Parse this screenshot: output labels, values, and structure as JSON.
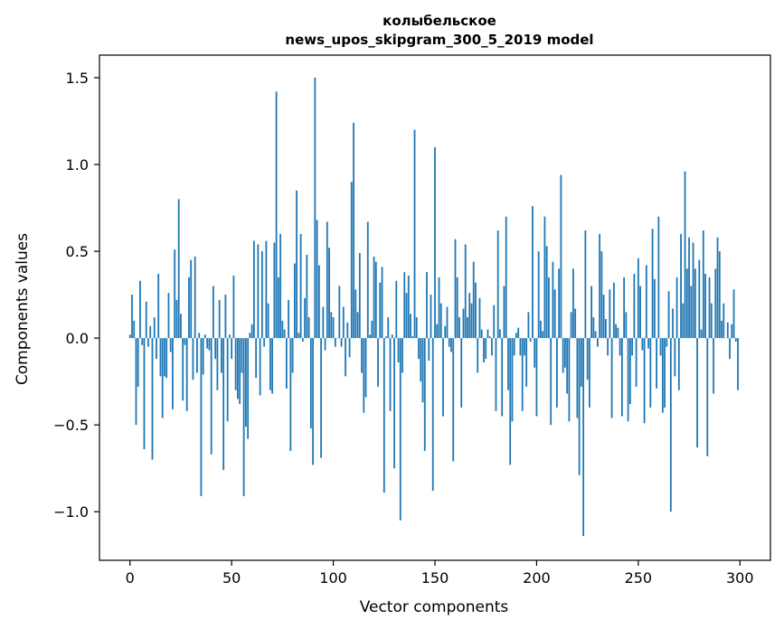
{
  "chart_data": {
    "type": "bar",
    "title_line1": "колыбельское",
    "title_line2": "news_upos_skipgram_300_5_2019 model",
    "xlabel": "Vector components",
    "ylabel": "Components values",
    "xlim": [
      -15,
      315
    ],
    "ylim": [
      -1.28,
      1.63
    ],
    "xticks": [
      0,
      50,
      100,
      150,
      200,
      250,
      300
    ],
    "xtick_labels": [
      "0",
      "50",
      "100",
      "150",
      "200",
      "250",
      "300"
    ],
    "yticks": [
      -1.0,
      -0.5,
      0.0,
      0.5,
      1.0,
      1.5
    ],
    "ytick_labels": [
      "−1.0",
      "−0.5",
      "0.0",
      "0.5",
      "1.0",
      "1.5"
    ],
    "bar_color": "#1f77b4",
    "grid": false,
    "values": [
      0.02,
      0.25,
      0.1,
      -0.5,
      -0.28,
      0.33,
      -0.04,
      -0.64,
      0.21,
      -0.05,
      0.07,
      -0.7,
      0.12,
      -0.12,
      0.37,
      -0.22,
      -0.46,
      -0.22,
      -0.23,
      0.26,
      -0.08,
      -0.41,
      0.51,
      0.22,
      0.8,
      0.14,
      -0.36,
      -0.04,
      -0.42,
      0.35,
      0.45,
      -0.24,
      0.47,
      -0.2,
      0.03,
      -0.91,
      -0.21,
      0.02,
      -0.06,
      -0.07,
      -0.67,
      0.3,
      -0.12,
      -0.3,
      0.22,
      -0.2,
      -0.76,
      0.25,
      -0.48,
      0.02,
      -0.12,
      0.36,
      -0.3,
      -0.35,
      -0.38,
      -0.2,
      -0.91,
      -0.51,
      -0.58,
      0.03,
      0.08,
      0.56,
      -0.23,
      0.54,
      -0.33,
      0.5,
      -0.05,
      0.56,
      0.2,
      -0.3,
      -0.32,
      0.55,
      1.42,
      0.35,
      0.6,
      0.1,
      0.05,
      -0.29,
      0.22,
      -0.65,
      -0.2,
      0.43,
      0.85,
      0.03,
      0.6,
      -0.02,
      0.23,
      0.48,
      0.12,
      -0.52,
      -0.73,
      1.5,
      0.68,
      0.42,
      -0.69,
      0.18,
      -0.07,
      0.67,
      0.52,
      0.15,
      0.12,
      -0.05,
      0.0,
      0.3,
      -0.05,
      0.18,
      -0.22,
      0.09,
      -0.11,
      0.9,
      1.24,
      0.28,
      0.15,
      0.49,
      -0.2,
      -0.43,
      -0.34,
      0.67,
      0.02,
      0.1,
      0.47,
      0.44,
      -0.28,
      0.32,
      0.41,
      -0.89,
      0.01,
      0.12,
      -0.42,
      0.02,
      -0.75,
      0.33,
      -0.14,
      -1.05,
      -0.2,
      0.38,
      0.26,
      0.36,
      0.14,
      0.01,
      1.2,
      0.12,
      -0.12,
      -0.25,
      -0.37,
      -0.65,
      0.38,
      -0.13,
      0.25,
      -0.88,
      1.1,
      0.08,
      0.35,
      0.2,
      -0.45,
      0.07,
      0.18,
      -0.05,
      -0.08,
      -0.71,
      0.57,
      0.35,
      0.12,
      -0.4,
      0.17,
      0.54,
      0.12,
      0.26,
      0.2,
      0.44,
      0.32,
      -0.2,
      0.23,
      0.05,
      -0.14,
      -0.12,
      0.05,
      0.01,
      -0.1,
      0.19,
      -0.42,
      0.62,
      0.05,
      -0.45,
      0.3,
      0.7,
      -0.3,
      -0.73,
      -0.48,
      -0.1,
      0.03,
      0.06,
      -0.1,
      -0.42,
      -0.1,
      -0.28,
      0.15,
      -0.02,
      0.76,
      -0.17,
      -0.45,
      0.5,
      0.1,
      0.04,
      0.7,
      0.53,
      0.35,
      -0.5,
      0.44,
      0.28,
      -0.4,
      0.4,
      0.94,
      -0.2,
      -0.17,
      -0.32,
      -0.48,
      0.15,
      0.4,
      0.17,
      -0.46,
      -0.79,
      -0.28,
      -1.14,
      0.62,
      -0.24,
      -0.4,
      0.3,
      0.12,
      0.04,
      -0.05,
      0.6,
      0.5,
      0.25,
      0.11,
      -0.1,
      0.28,
      -0.46,
      0.32,
      0.08,
      0.06,
      -0.1,
      -0.45,
      0.35,
      0.15,
      -0.48,
      -0.38,
      -0.1,
      0.37,
      -0.28,
      0.46,
      0.3,
      -0.07,
      -0.49,
      0.42,
      -0.06,
      -0.4,
      0.63,
      0.34,
      -0.29,
      0.7,
      -0.1,
      -0.43,
      -0.4,
      -0.05,
      0.27,
      -1.0,
      0.17,
      -0.22,
      0.35,
      -0.3,
      0.6,
      0.2,
      0.96,
      0.4,
      0.58,
      0.3,
      0.55,
      0.4,
      -0.63,
      0.45,
      0.05,
      0.62,
      0.37,
      -0.68,
      0.35,
      0.2,
      -0.32,
      0.4,
      0.58,
      0.5,
      0.1,
      0.2,
      0.0,
      0.09,
      -0.12,
      0.08,
      0.28,
      -0.02,
      -0.3
    ]
  }
}
